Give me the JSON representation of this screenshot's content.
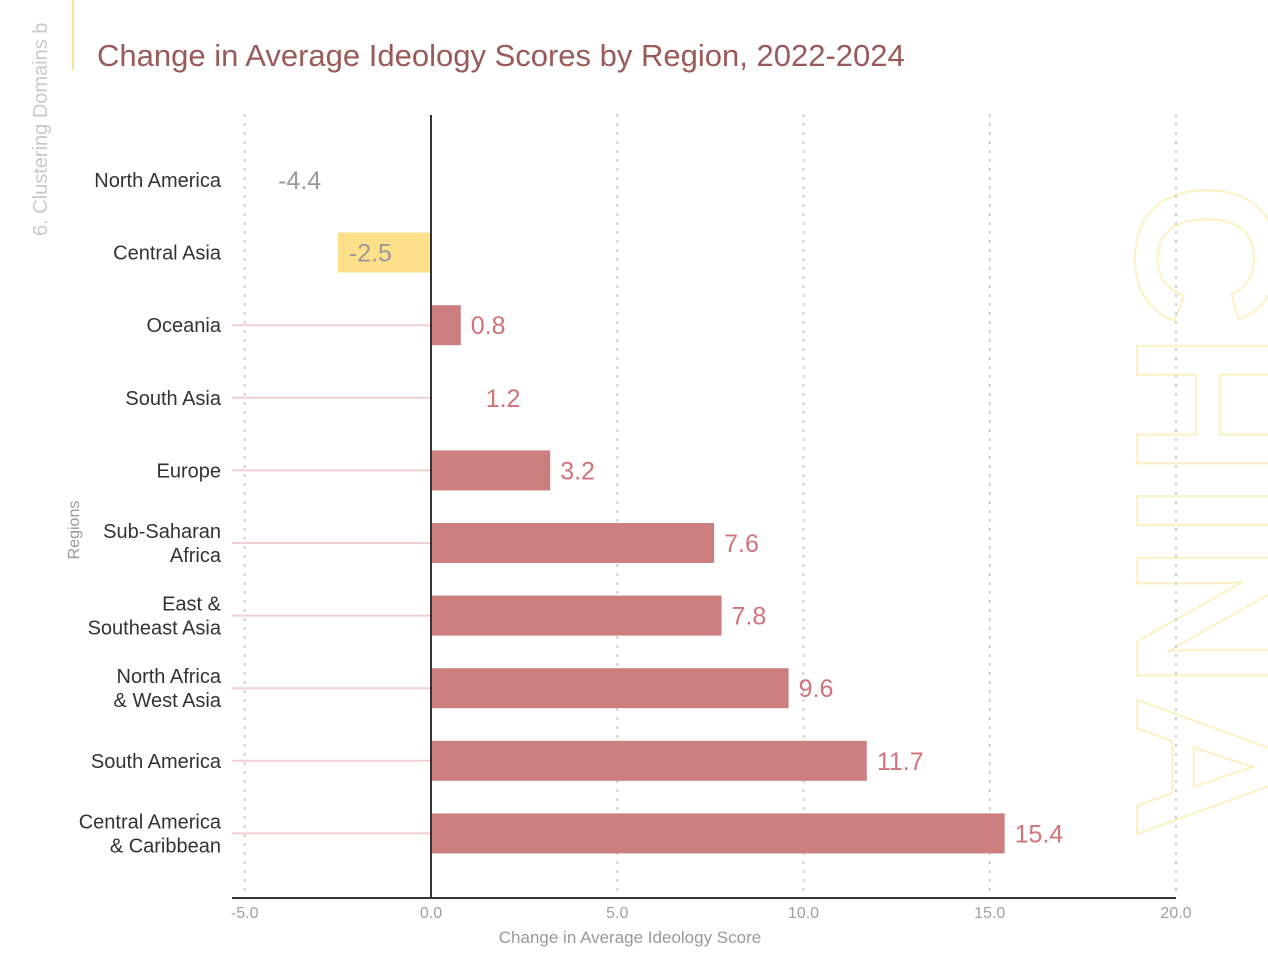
{
  "side_caption": "6. Clustering Domains b",
  "watermark": "CHINA",
  "colors": {
    "bar": "#CD7E7E",
    "highlight": "#FFE08A",
    "value_pos": "#D0737A",
    "value_neg": "#9A9A9A",
    "title": "#9B5A5A",
    "guide": "#F2CFD2",
    "watermark": "#FDF1C4"
  },
  "chart_data": {
    "type": "bar",
    "orientation": "horizontal",
    "title": "Change in Average Ideology Scores by Region, 2022-2024",
    "xlabel": "Change in Average Ideology Score",
    "ylabel": "Regions",
    "xlim": [
      -5,
      20
    ],
    "xticks": [
      -5,
      0,
      5,
      10,
      15,
      20
    ],
    "xtick_labels": [
      "-5.0",
      "0.0",
      "5.0",
      "10.0",
      "15.0",
      "20.0"
    ],
    "grid": "vertical dotted",
    "categories": [
      [
        "North America"
      ],
      [
        "Central Asia"
      ],
      [
        "Oceania"
      ],
      [
        "South Asia"
      ],
      [
        "Europe"
      ],
      [
        "Sub-Saharan",
        "Africa"
      ],
      [
        "East &",
        "Southeast Asia"
      ],
      [
        "North Africa",
        "& West Asia"
      ],
      [
        "South America"
      ],
      [
        "Central America",
        "& Caribbean"
      ]
    ],
    "values": [
      -4.4,
      -2.5,
      0.8,
      1.2,
      3.2,
      7.6,
      7.8,
      9.6,
      11.7,
      15.4
    ],
    "value_labels": [
      "-4.4",
      "-2.5",
      "0.8",
      "1.2",
      "3.2",
      "7.6",
      "7.8",
      "9.6",
      "11.7",
      "15.4"
    ],
    "bar_style": [
      "hidden",
      "highlight",
      "normal",
      "hidden",
      "normal",
      "normal",
      "normal",
      "normal",
      "normal",
      "normal"
    ],
    "guide_line": [
      false,
      false,
      true,
      true,
      true,
      true,
      true,
      true,
      true,
      true
    ]
  }
}
